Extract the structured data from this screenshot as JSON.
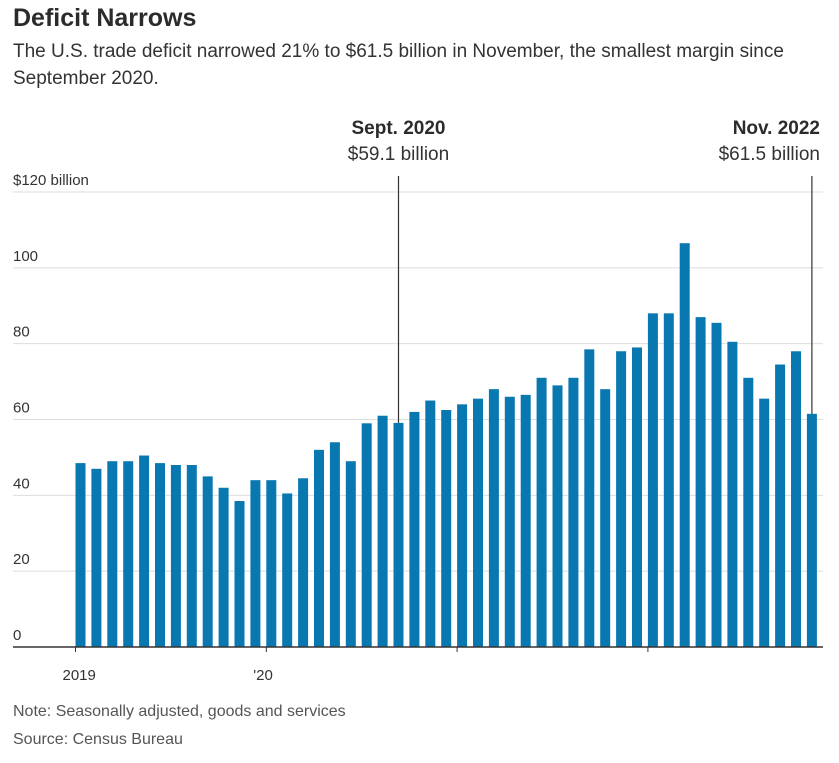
{
  "header": {
    "title": "Deficit Narrows",
    "subtitle": "The U.S. trade deficit narrowed 21% to $61.5 billion in November, the smallest margin since September 2020."
  },
  "footer": {
    "note": "Note: Seasonally adjusted, goods and services",
    "source": "Source: Census Bureau"
  },
  "colors": {
    "bar": "#0a78b0",
    "grid": "#dddddd",
    "axis": "#333333"
  },
  "chart_data": {
    "type": "bar",
    "title": "Deficit Narrows",
    "ylim": [
      0,
      120
    ],
    "y_ticks": [
      {
        "value": 0,
        "label": "0"
      },
      {
        "value": 20,
        "label": "20"
      },
      {
        "value": 40,
        "label": "40"
      },
      {
        "value": 60,
        "label": "60"
      },
      {
        "value": 80,
        "label": "80"
      },
      {
        "value": 100,
        "label": "100"
      },
      {
        "value": 120,
        "label": "$120 billion"
      }
    ],
    "x_ticks": [
      {
        "index": 0,
        "label": "2019"
      },
      {
        "index": 12,
        "label": "'20"
      },
      {
        "index": 24,
        "label": ""
      },
      {
        "index": 36,
        "label": ""
      }
    ],
    "grid": true,
    "values": [
      48.5,
      47,
      49,
      49,
      50.5,
      48.5,
      48,
      48,
      45,
      42,
      38.5,
      44,
      44,
      40.5,
      44.5,
      52,
      54,
      49,
      59,
      61,
      59.1,
      62,
      65,
      62.5,
      64,
      65.5,
      68,
      66,
      66.5,
      71,
      69,
      71,
      78.5,
      68,
      78,
      79,
      88,
      88,
      106.5,
      87,
      85.5,
      80.5,
      71,
      65.5,
      74.5,
      78,
      61.5
    ],
    "annotations": [
      {
        "index": 20,
        "label": "Sept. 2020",
        "value_label": "$59.1 billion",
        "value": 59.1
      },
      {
        "index": 46,
        "label": "Nov. 2022",
        "value_label": "$61.5 billion",
        "value": 61.5
      }
    ]
  }
}
